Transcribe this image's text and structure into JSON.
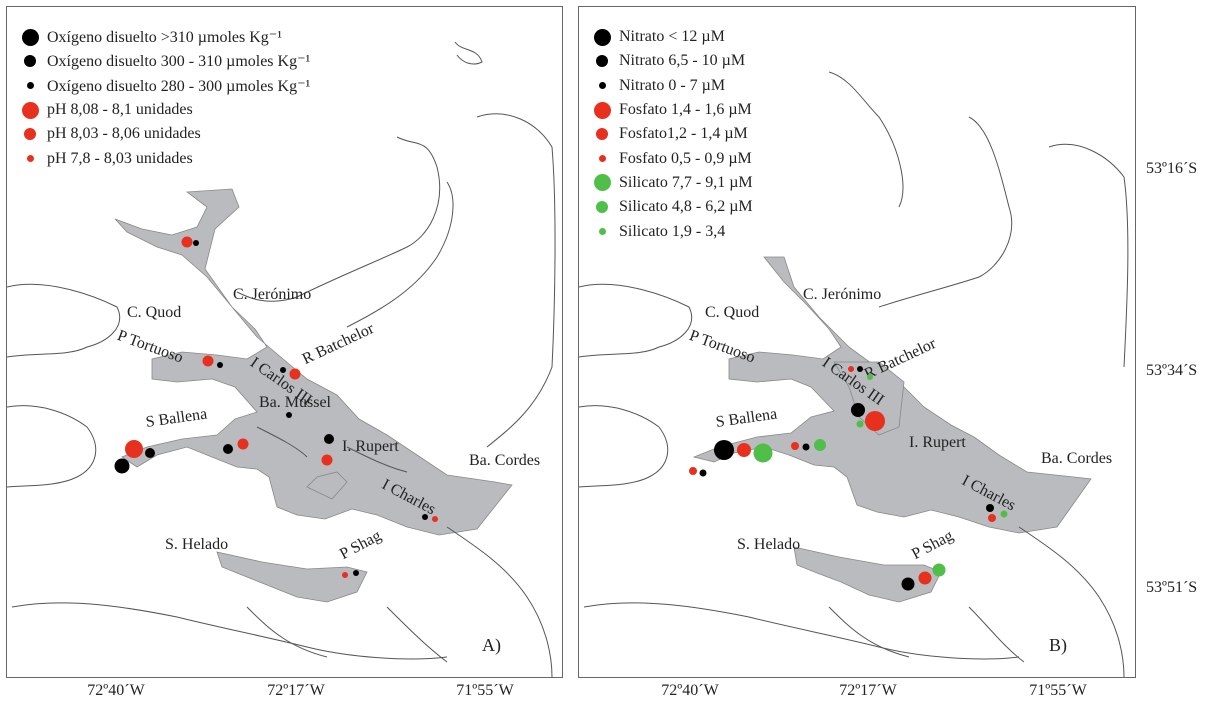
{
  "panels": [
    {
      "id": "A",
      "letter": "A)",
      "legend": [
        {
          "label": "Oxígeno disuelto >310 µmoles Kg⁻¹",
          "color": "#000000",
          "size": "large"
        },
        {
          "label": "Oxígeno disuelto 300 - 310 µmoles Kg⁻¹",
          "color": "#000000",
          "size": "medium"
        },
        {
          "label": "Oxígeno disuelto 280 - 300 µmoles Kg⁻¹",
          "color": "#000000",
          "size": "small"
        },
        {
          "label": "pH 8,08 - 8,1 unidades",
          "color": "#e8301e",
          "size": "large"
        },
        {
          "label": "pH 8,03 - 8,06 unidades",
          "color": "#e8301e",
          "size": "medium"
        },
        {
          "label": "pH 7,8 - 8,03 unidades",
          "color": "#e8301e",
          "size": "small"
        }
      ],
      "places": [
        {
          "name": "C. Jerónimo"
        },
        {
          "name": "C. Quod"
        },
        {
          "name": "P Tortuoso"
        },
        {
          "name": "I Carlos III"
        },
        {
          "name": "R Batchelor"
        },
        {
          "name": "Ba. Mussel"
        },
        {
          "name": "S Ballena"
        },
        {
          "name": "I. Rupert"
        },
        {
          "name": "Ba. Cordes"
        },
        {
          "name": "I Charles"
        },
        {
          "name": "S. Helado"
        },
        {
          "name": "P Shag"
        }
      ]
    },
    {
      "id": "B",
      "letter": "B)",
      "legend": [
        {
          "label": "Nitrato < 12 µM",
          "color": "#000000",
          "size": "large"
        },
        {
          "label": "Nitrato 6,5 - 10 µM",
          "color": "#000000",
          "size": "medium"
        },
        {
          "label": "Nitrato 0 - 7 µM",
          "color": "#000000",
          "size": "small"
        },
        {
          "label": "Fosfato 1,4 - 1,6 µM",
          "color": "#e8301e",
          "size": "large"
        },
        {
          "label": "Fosfato1,2 - 1,4 µM",
          "color": "#e8301e",
          "size": "medium"
        },
        {
          "label": "Fosfato 0,5 - 0,9 µM",
          "color": "#e8301e",
          "size": "small"
        },
        {
          "label": "Silicato 7,7 - 9,1 µM",
          "color": "#4fbf4a",
          "size": "large"
        },
        {
          "label": "Silicato 4,8 - 6,2 µM",
          "color": "#4fbf4a",
          "size": "medium"
        },
        {
          "label": "Silicato 1,9 -  3,4",
          "color": "#4fbf4a",
          "size": "small"
        }
      ],
      "places": [
        {
          "name": "C. Jerónimo"
        },
        {
          "name": "C. Quod"
        },
        {
          "name": "P Tortuoso"
        },
        {
          "name": "I Carlos III"
        },
        {
          "name": "R Batchelor"
        },
        {
          "name": "S Ballena"
        },
        {
          "name": "I. Rupert"
        },
        {
          "name": "Ba. Cordes"
        },
        {
          "name": "I Charles"
        },
        {
          "name": "S. Helado"
        },
        {
          "name": "P Shag"
        }
      ]
    }
  ],
  "x_ticks_a": [
    "72º40´W",
    "72º17´W",
    "71º55´W"
  ],
  "x_ticks_b": [
    "72º40´W",
    "72º17´W",
    "71º55´W"
  ],
  "y_ticks": [
    "53º16´S",
    "53º34´S",
    "53º51´S"
  ],
  "colors": {
    "water": "#b9bbbe",
    "coast": "#555555"
  }
}
